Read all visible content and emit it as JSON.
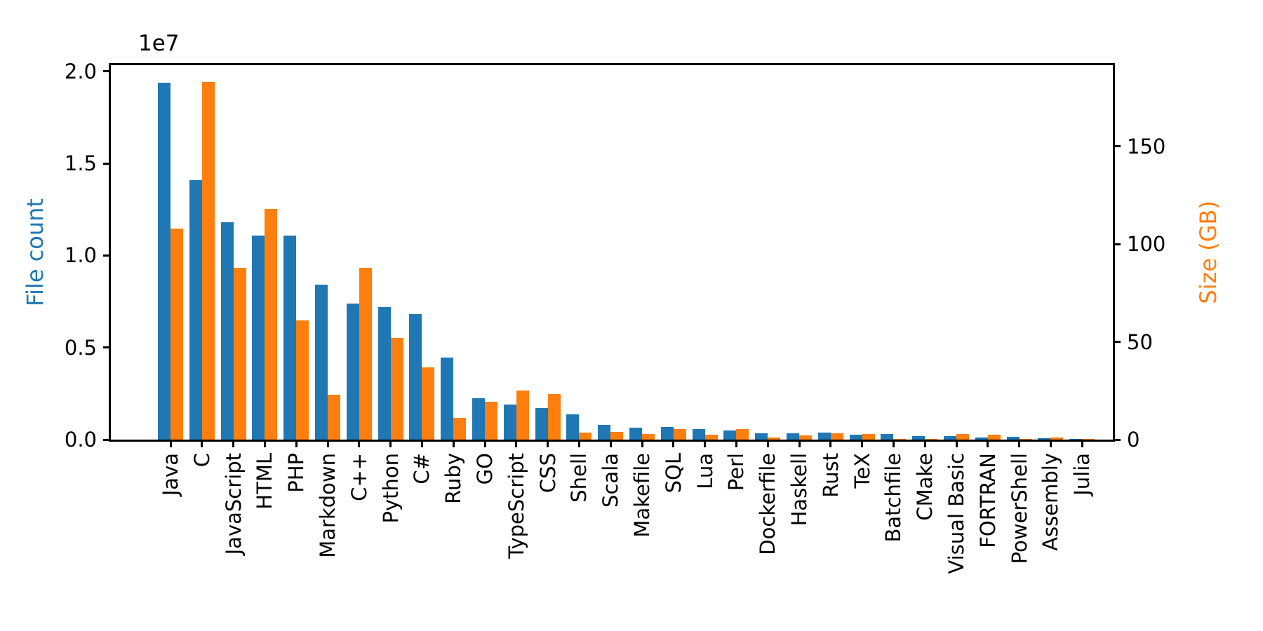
{
  "figure": {
    "background_color": "#ffffff",
    "spine_color": "#000000",
    "tick_label_color": "#000000"
  },
  "chart_data": {
    "type": "bar",
    "title": "",
    "xlabel": "",
    "grid": false,
    "legend": null,
    "categories": [
      "Java",
      "C",
      "JavaScript",
      "HTML",
      "PHP",
      "Markdown",
      "C++",
      "Python",
      "C#",
      "Ruby",
      "GO",
      "TypeScript",
      "CSS",
      "Shell",
      "Scala",
      "Makefile",
      "SQL",
      "Lua",
      "Perl",
      "Dockerfile",
      "Haskell",
      "Rust",
      "TeX",
      "Batchfile",
      "CMake",
      "Visual Basic",
      "FORTRAN",
      "PowerShell",
      "Assembly",
      "Julia"
    ],
    "series": [
      {
        "name": "File count",
        "axis": "left",
        "color": "#1f77b4",
        "values": [
          19400000,
          14100000,
          11800000,
          11100000,
          11100000,
          8400000,
          7400000,
          7200000,
          6800000,
          4450000,
          2250000,
          1900000,
          1700000,
          1370000,
          800000,
          650000,
          690000,
          570000,
          500000,
          360000,
          340000,
          380000,
          270000,
          300000,
          190000,
          200000,
          110000,
          150000,
          80000,
          40000
        ]
      },
      {
        "name": "Size (GB)",
        "axis": "right",
        "color": "#ff7f0e",
        "values": [
          108,
          183,
          88,
          118,
          61,
          23,
          88,
          52,
          37,
          11,
          19.5,
          25,
          23.5,
          3.5,
          4,
          3,
          5.5,
          2.5,
          5.5,
          1,
          2.2,
          3.2,
          2.9,
          0.4,
          0.3,
          2.9,
          2.5,
          0.4,
          1.1,
          0.2
        ]
      }
    ],
    "left_axis": {
      "label": "File count",
      "label_color": "#1f77b4",
      "offset_text": "1e7",
      "tick_values": [
        0,
        5000000,
        10000000,
        15000000,
        20000000
      ],
      "tick_labels": [
        "0.0",
        "0.5",
        "1.0",
        "1.5",
        "2.0"
      ],
      "max": 20340000
    },
    "right_axis": {
      "label": "Size (GB)",
      "label_color": "#ff7f0e",
      "tick_values": [
        0,
        50,
        100,
        150
      ],
      "tick_labels": [
        "0",
        "50",
        "100",
        "150"
      ],
      "max": 191.6
    }
  }
}
